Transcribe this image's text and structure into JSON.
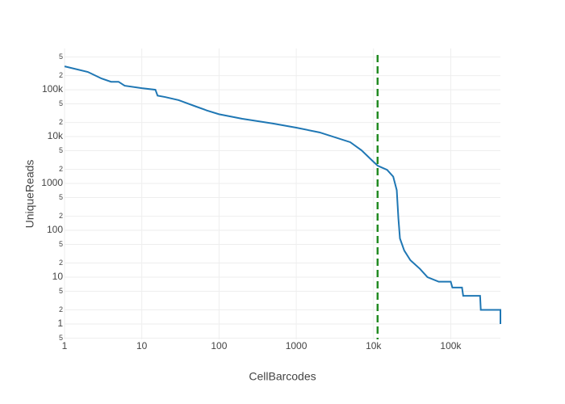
{
  "chart_data": {
    "type": "line",
    "x_label": "CellBarcodes",
    "y_label": "UniqueReads",
    "log_x": true,
    "log_y": true,
    "grid": true,
    "x": [
      1,
      2,
      3,
      4,
      5,
      6,
      10,
      15,
      16,
      20,
      30,
      50,
      70,
      100,
      200,
      500,
      1000,
      2000,
      5000,
      7000,
      10000,
      11300,
      15000,
      18000,
      20000,
      21000,
      22000,
      25000,
      30000,
      40000,
      50000,
      70000,
      100000,
      105000,
      140000,
      145000,
      240000,
      245000,
      440000,
      440000
    ],
    "series": [
      {
        "name": "UniqueReads",
        "color": "#1f77b4",
        "values": [
          316000,
          240000,
          174000,
          148000,
          148000,
          122000,
          108000,
          100000,
          75000,
          70000,
          60000,
          44000,
          36000,
          30000,
          24000,
          19000,
          15500,
          12300,
          7600,
          5100,
          2900,
          2400,
          1950,
          1400,
          720,
          180,
          67,
          37,
          23,
          15,
          10,
          8,
          8,
          6,
          6,
          4,
          4,
          2,
          2,
          1
        ]
      }
    ],
    "vline": {
      "x": 11300,
      "color": "#228b22"
    },
    "xlim": [
      1,
      440000
    ],
    "ylim": [
      0.47,
      760000
    ],
    "xticks": [
      1,
      10,
      100,
      1000,
      {
        "value": 10000,
        "label": "10k"
      },
      {
        "value": 100000,
        "label": "100k"
      }
    ],
    "yticks": [
      {
        "value": 0.5,
        "label": "5"
      },
      1,
      {
        "value": 2,
        "label": "2"
      },
      {
        "value": 5,
        "label": "5"
      },
      10,
      {
        "value": 20,
        "label": "2"
      },
      {
        "value": 50,
        "label": "5"
      },
      100,
      {
        "value": 200,
        "label": "2"
      },
      {
        "value": 500,
        "label": "5"
      },
      1000,
      {
        "value": 2000,
        "label": "2"
      },
      {
        "value": 5000,
        "label": "5"
      },
      {
        "value": 10000,
        "label": "10k"
      },
      {
        "value": 20000,
        "label": "2"
      },
      {
        "value": 50000,
        "label": "5"
      },
      {
        "value": 100000,
        "label": "100k"
      },
      {
        "value": 200000,
        "label": "2"
      },
      {
        "value": 500000,
        "label": "5"
      }
    ]
  }
}
